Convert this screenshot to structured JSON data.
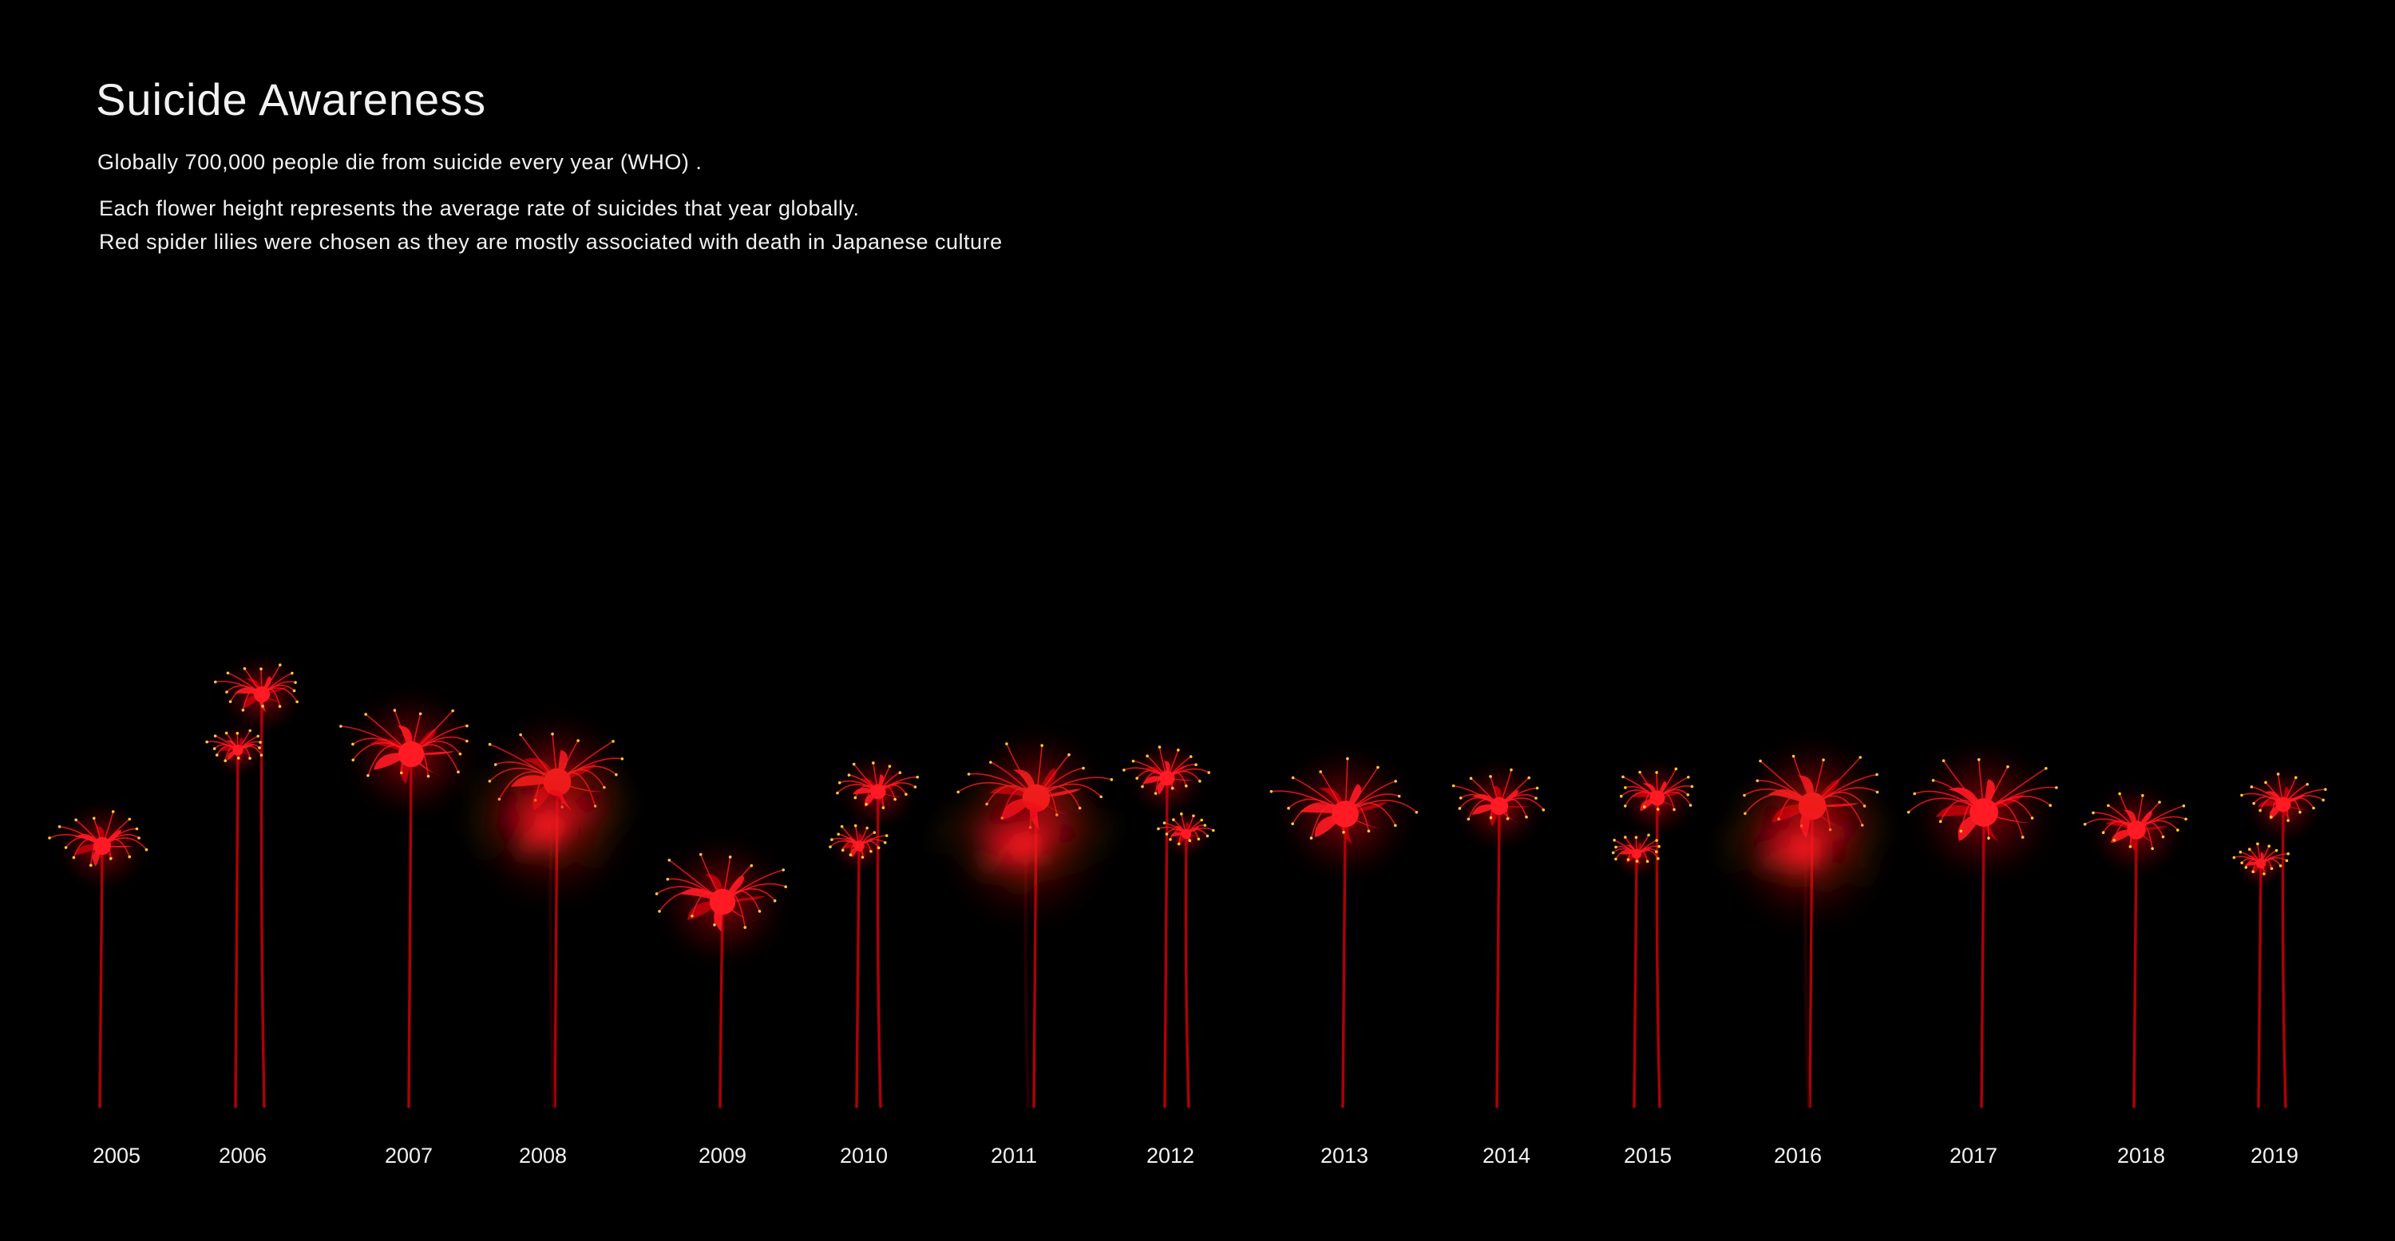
{
  "title": "Suicide Awareness",
  "subtitle": "Globally 700,000 people die from suicide every year (WHO) .",
  "description_lines": [
    "Each flower height represents the average rate of suicides that year globally.",
    "Red spider lilies were chosen as they are mostly associated with death in Japanese culture"
  ],
  "colors": {
    "background": "#000000",
    "text": "#f2f2f2",
    "petal": "#ff1a24",
    "petal_dark": "#c0000c",
    "stem": "#b5000a",
    "glow": "#ff0010"
  },
  "icon": "spider-lily-flower",
  "years": [
    "2005",
    "2006",
    "2007",
    "2008",
    "2009",
    "2010",
    "2011",
    "2012",
    "2013",
    "2014",
    "2015",
    "2016",
    "2017",
    "2018",
    "2019"
  ]
}
